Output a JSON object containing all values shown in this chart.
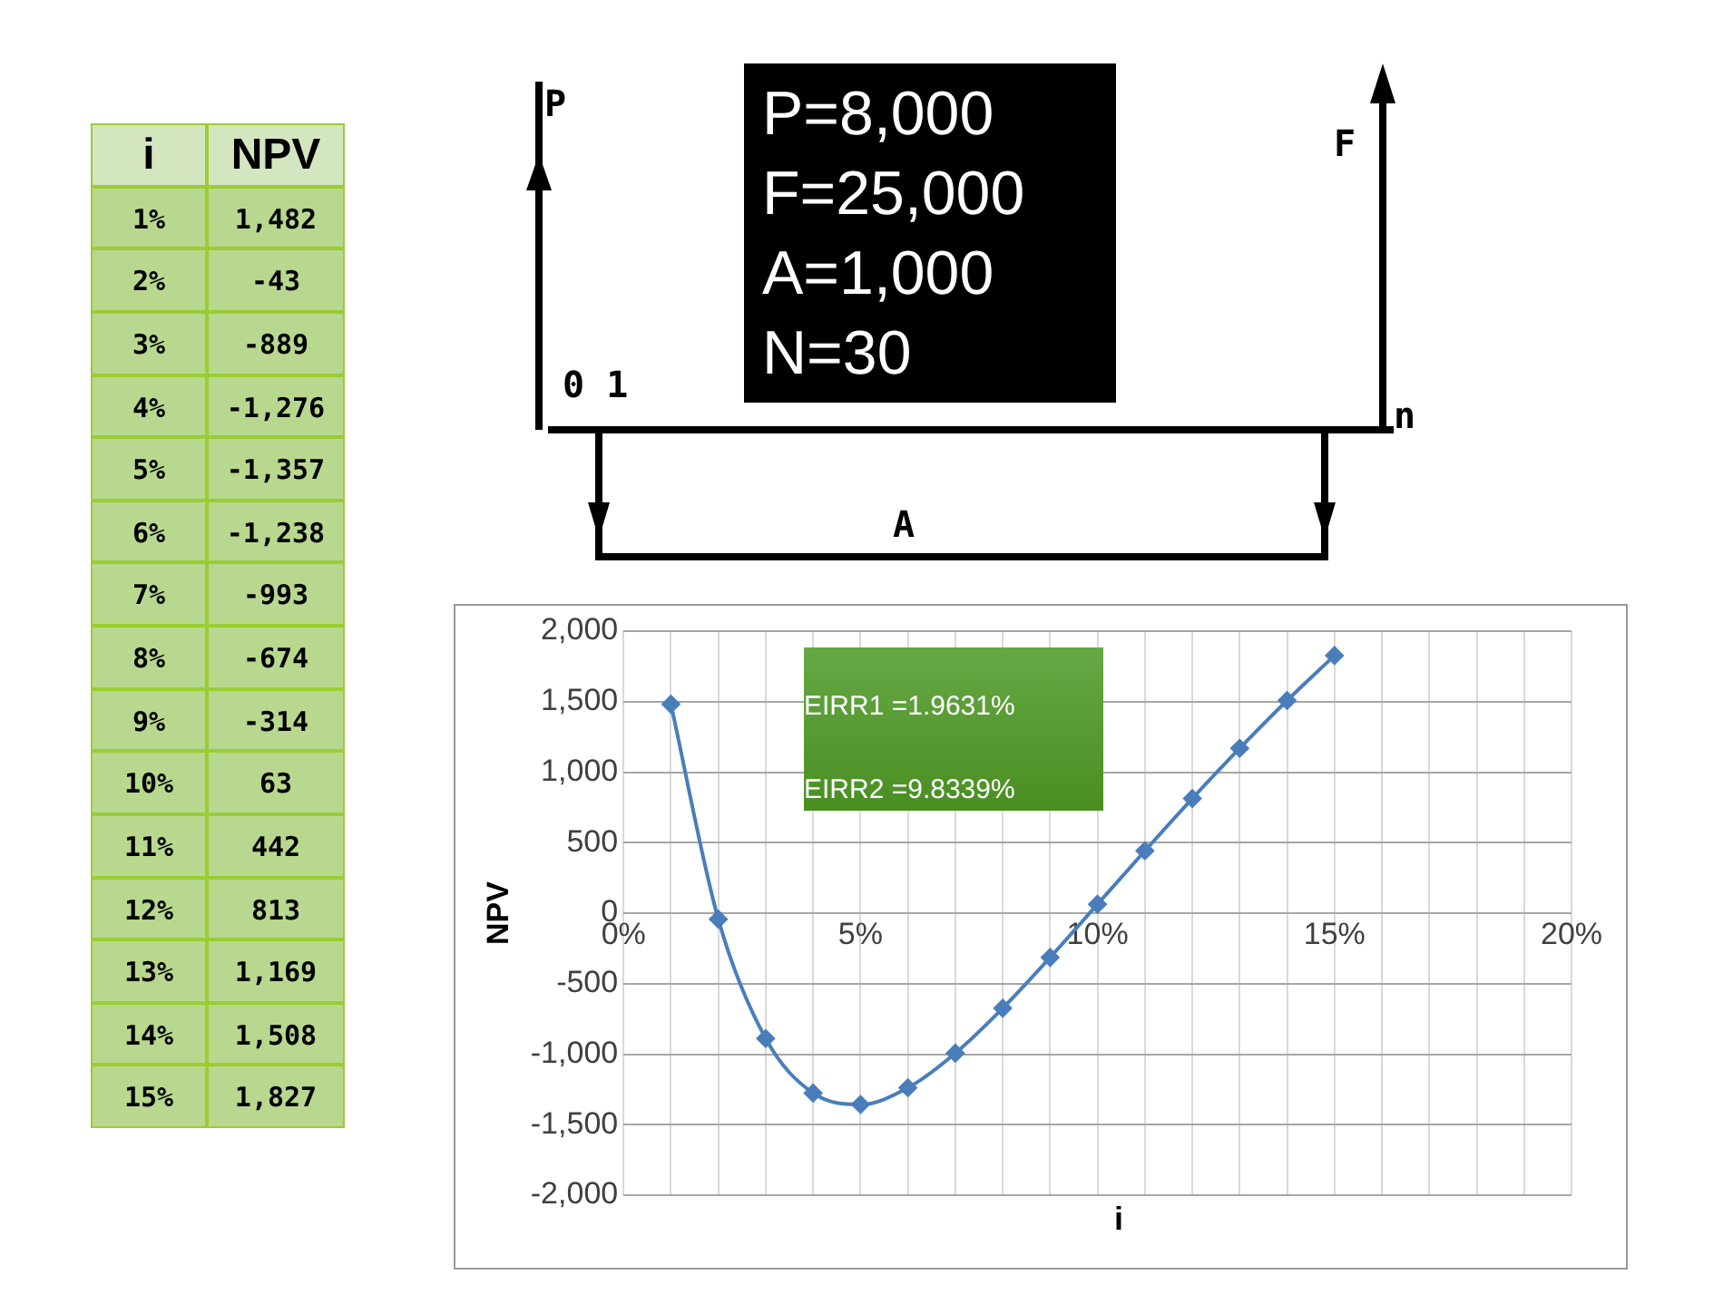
{
  "chart_data": {
    "type": "line",
    "xlabel": "i",
    "ylabel": "NPV",
    "x": [
      1,
      2,
      3,
      4,
      5,
      6,
      7,
      8,
      9,
      10,
      11,
      12,
      13,
      14,
      15
    ],
    "series": [
      {
        "color": "#4a7ebb",
        "values": [
          1482,
          -43,
          -889,
          -1276,
          -1357,
          -1238,
          -993,
          -674,
          -314,
          63,
          442,
          813,
          1169,
          1508,
          1827
        ]
      }
    ],
    "xlim": [
      0,
      20
    ],
    "xticks": [
      {
        "value": 0,
        "label": "0%"
      },
      {
        "value": 1,
        "label": null
      },
      {
        "value": 2,
        "label": null
      },
      {
        "value": 3,
        "label": null
      },
      {
        "value": 4,
        "label": null
      },
      {
        "value": 5,
        "label": "5%"
      },
      {
        "value": 6,
        "label": null
      },
      {
        "value": 7,
        "label": null
      },
      {
        "value": 8,
        "label": null
      },
      {
        "value": 9,
        "label": null
      },
      {
        "value": 10,
        "label": "10%"
      },
      {
        "value": 11,
        "label": null
      },
      {
        "value": 12,
        "label": null
      },
      {
        "value": 13,
        "label": null
      },
      {
        "value": 14,
        "label": null
      },
      {
        "value": 15,
        "label": "15%"
      },
      {
        "value": 16,
        "label": null
      },
      {
        "value": 17,
        "label": null
      },
      {
        "value": 18,
        "label": null
      },
      {
        "value": 19,
        "label": null
      },
      {
        "value": 20,
        "label": "20%"
      }
    ],
    "ylim": [
      -2000,
      2000
    ],
    "yticks": [
      {
        "value": -2000,
        "label": "-2,000"
      },
      {
        "value": -1500,
        "label": "-1,500"
      },
      {
        "value": -1000,
        "label": "-1,000"
      },
      {
        "value": -500,
        "label": "-500"
      },
      0,
      500,
      {
        "value": 1000,
        "label": "1,000"
      },
      {
        "value": 1500,
        "label": "1,500"
      },
      {
        "value": 2000,
        "label": "2,000"
      }
    ],
    "grid": true,
    "legend": false,
    "marker": "diamond",
    "line_style": "solid",
    "annotations": [
      "EIRR1 =1.9631%",
      "EIRR2 =9.8339%",
      "P=8,000",
      "F=25,000",
      "A=1,000",
      "N=30",
      "P",
      "F",
      "0 1",
      "n",
      "A",
      "i",
      "NPV",
      "1%",
      "1,482",
      "2%",
      "-43",
      "3%",
      "-889",
      "4%",
      "-1,276",
      "5%",
      "-1,357",
      "6%",
      "-1,238",
      "7%",
      "-993",
      "8%",
      "-674",
      "9%",
      "-314",
      "10%",
      "63",
      "11%",
      "442",
      "12%",
      "813",
      "13%",
      "1,169",
      "14%",
      "1,508",
      "15%",
      "1,827"
    ]
  }
}
